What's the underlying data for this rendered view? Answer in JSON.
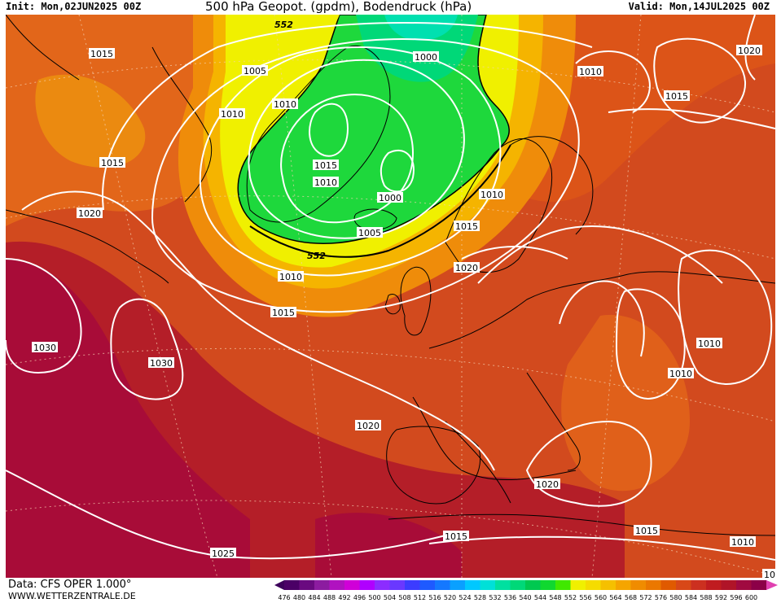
{
  "header": {
    "init": "Init: Mon,02JUN2025 00Z",
    "title": "500 hPa Geopot. (gpdm), Bodendruck (hPa)",
    "valid": "Valid: Mon,14JUL2025 00Z"
  },
  "footer": {
    "source": "Data: CFS OPER 1.000°",
    "site": "WWW.WETTERZENTRALE.DE"
  },
  "colorbar": {
    "ticks": [
      "476",
      "480",
      "484",
      "488",
      "492",
      "496",
      "500",
      "504",
      "508",
      "512",
      "516",
      "520",
      "524",
      "528",
      "532",
      "536",
      "540",
      "544",
      "548",
      "552",
      "556",
      "560",
      "564",
      "568",
      "572",
      "576",
      "580",
      "584",
      "588",
      "592",
      "596",
      "600"
    ],
    "colors": [
      "#4b0066",
      "#6a0a80",
      "#8c1ca0",
      "#b012c0",
      "#d000d8",
      "#b000ff",
      "#8c2cff",
      "#6a38ff",
      "#3c3cff",
      "#1e5aff",
      "#1478ff",
      "#0aa0ff",
      "#00c8ff",
      "#00e0d8",
      "#00e0a0",
      "#00d878",
      "#00c850",
      "#10d830",
      "#40e800",
      "#f0f000",
      "#f5dc00",
      "#f5c000",
      "#f5a500",
      "#f08c00",
      "#eb7800",
      "#e05a00",
      "#d84818",
      "#cc3020",
      "#c01c20",
      "#b01428",
      "#a00a40",
      "#8c0048"
    ]
  },
  "map_labels": {
    "isobars": [
      {
        "text": "1015"
      },
      {
        "text": "1005"
      },
      {
        "text": "1010"
      },
      {
        "text": "1010"
      },
      {
        "text": "1000"
      },
      {
        "text": "1010"
      },
      {
        "text": "1020"
      },
      {
        "text": "1015"
      },
      {
        "text": "1015"
      },
      {
        "text": "1015"
      },
      {
        "text": "1010"
      },
      {
        "text": "1000"
      },
      {
        "text": "1010"
      },
      {
        "text": "1020"
      },
      {
        "text": "1005"
      },
      {
        "text": "1015"
      },
      {
        "text": "1020"
      },
      {
        "text": "1010"
      },
      {
        "text": "1015"
      },
      {
        "text": "1030"
      },
      {
        "text": "1030"
      },
      {
        "text": "1010"
      },
      {
        "text": "1010"
      },
      {
        "text": "1020"
      },
      {
        "text": "1020"
      },
      {
        "text": "1015"
      },
      {
        "text": "1015"
      },
      {
        "text": "1025"
      },
      {
        "text": "1010"
      },
      {
        "text": "10"
      }
    ],
    "geopot_labels": [
      {
        "text": "552"
      },
      {
        "text": "552"
      }
    ]
  }
}
